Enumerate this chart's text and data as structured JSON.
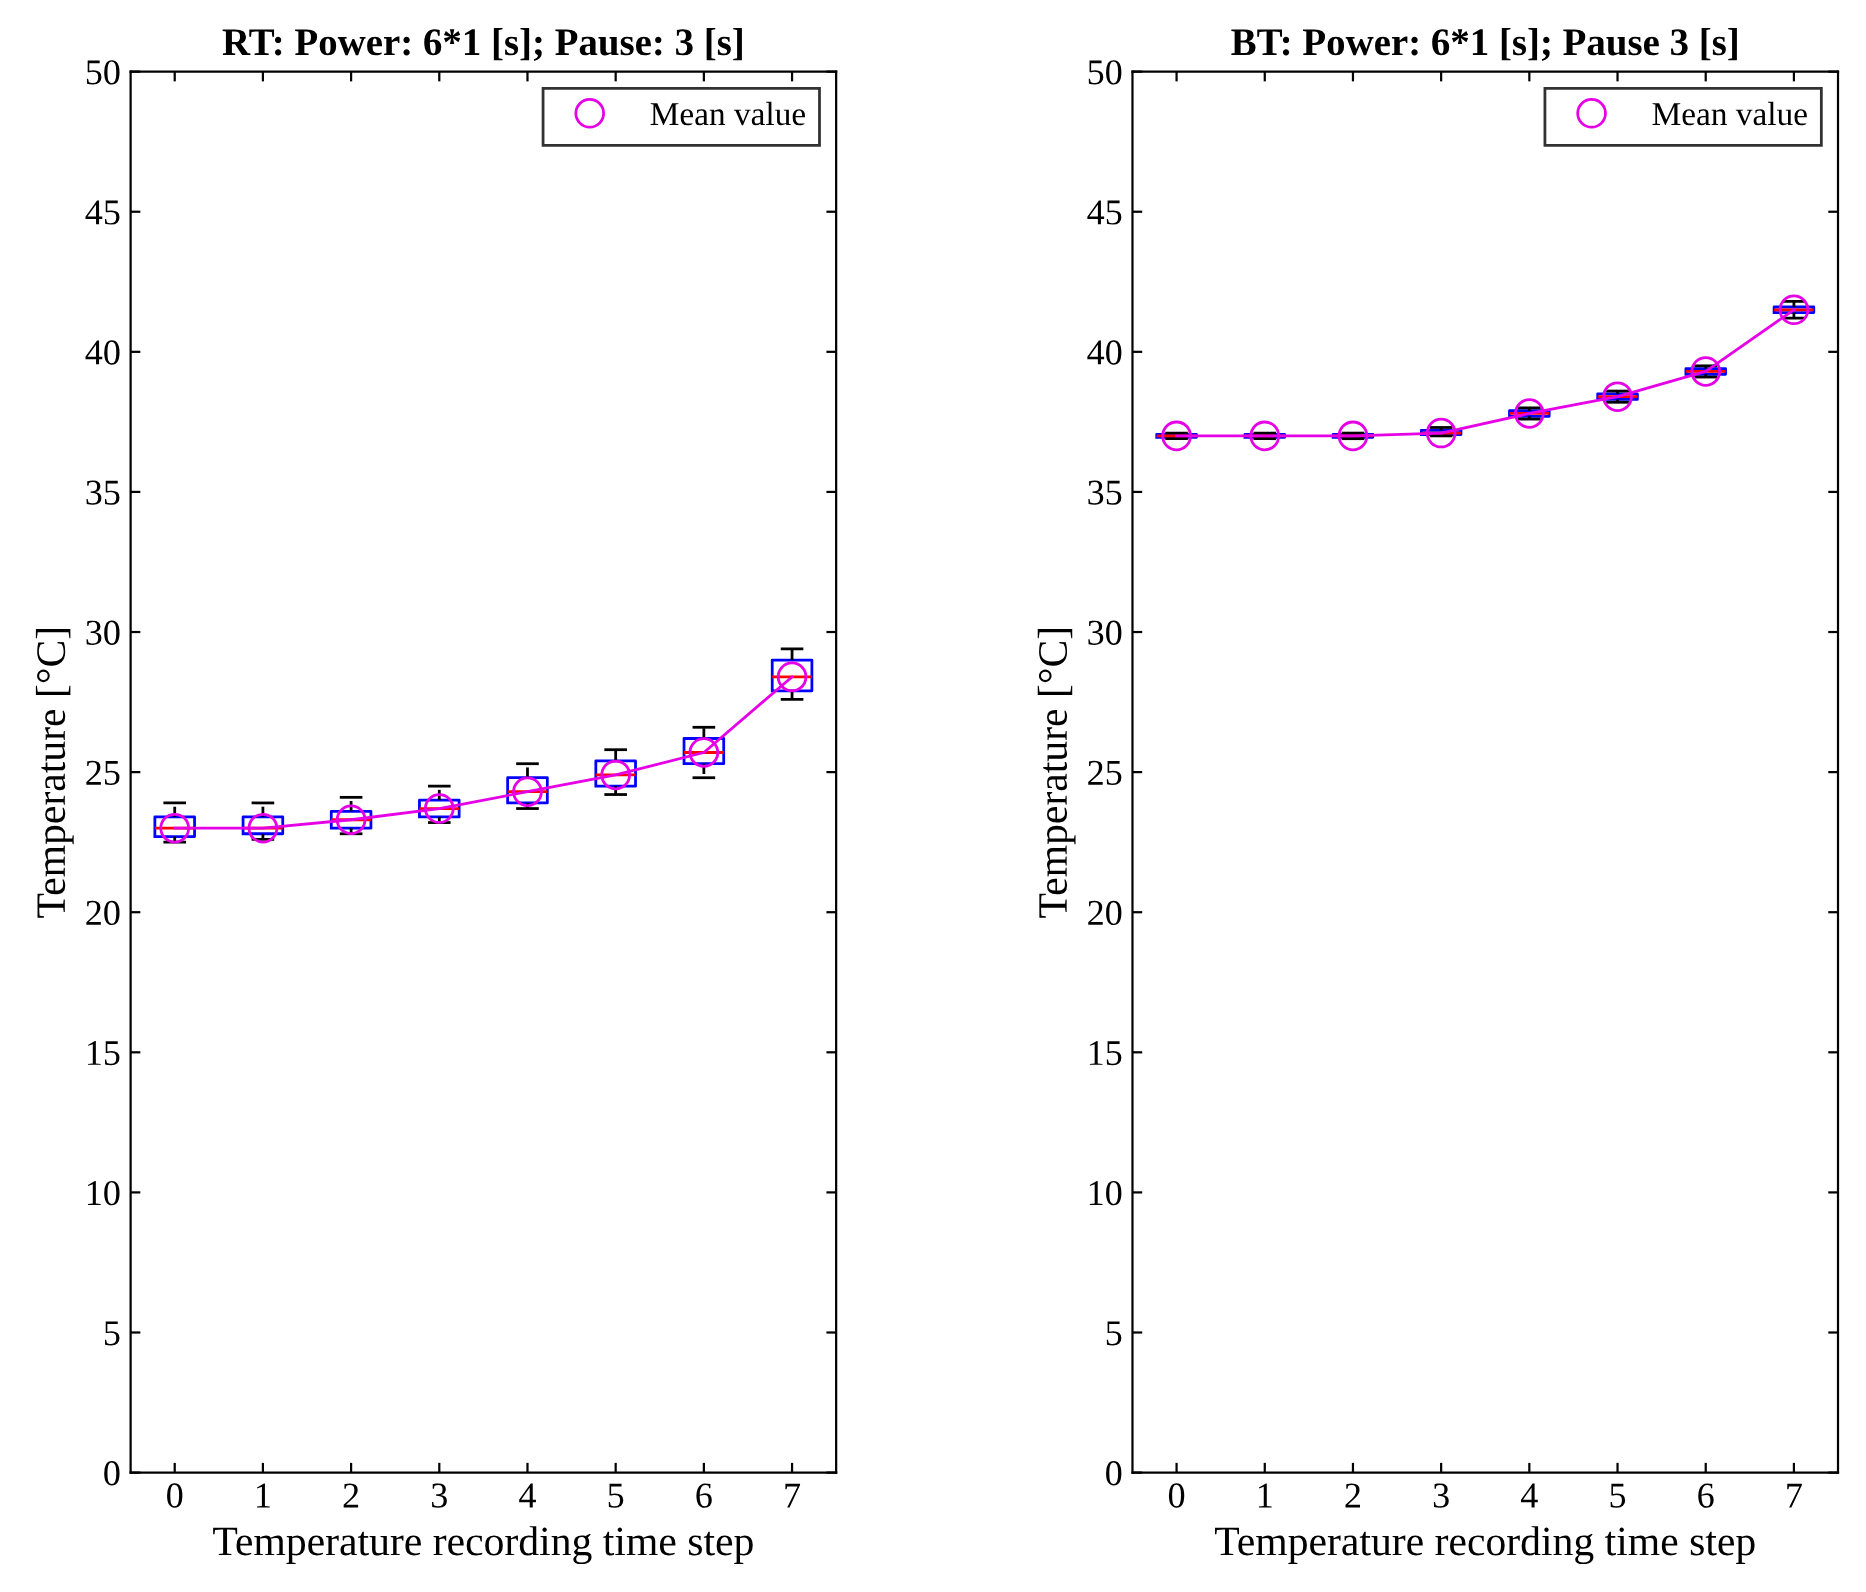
{
  "chart_data": [
    {
      "type": "box",
      "title": "RT: Power: 6*1 [s]; Pause: 3 [s]",
      "xlabel": "Temperature recording time step",
      "ylabel": "Temperature [°C]",
      "categories": [
        "0",
        "1",
        "2",
        "3",
        "4",
        "5",
        "6",
        "7"
      ],
      "ylim": [
        0,
        50
      ],
      "yticks": [
        0,
        5,
        10,
        15,
        20,
        25,
        30,
        35,
        40,
        45,
        50
      ],
      "legend": "top right",
      "grid": false,
      "color": "#0000ff",
      "boxes": [
        {
          "low": 22.5,
          "q1": 22.7,
          "median": 23.0,
          "q3": 23.4,
          "high": 23.9
        },
        {
          "low": 22.6,
          "q1": 22.8,
          "median": 23.0,
          "q3": 23.4,
          "high": 23.9
        },
        {
          "low": 22.8,
          "q1": 23.0,
          "median": 23.3,
          "q3": 23.6,
          "high": 24.1
        },
        {
          "low": 23.2,
          "q1": 23.4,
          "median": 23.7,
          "q3": 24.0,
          "high": 24.5
        },
        {
          "low": 23.7,
          "q1": 23.9,
          "median": 24.3,
          "q3": 24.8,
          "high": 25.3
        },
        {
          "low": 24.2,
          "q1": 24.5,
          "median": 24.9,
          "q3": 25.4,
          "high": 25.8
        },
        {
          "low": 24.8,
          "q1": 25.3,
          "median": 25.7,
          "q3": 26.2,
          "high": 26.6
        },
        {
          "low": 27.6,
          "q1": 27.9,
          "median": 28.4,
          "q3": 29.0,
          "high": 29.4
        }
      ],
      "series": [
        {
          "name": "Mean value",
          "type": "line",
          "color": "#e600e6",
          "marker": "circle",
          "values": [
            23.0,
            23.0,
            23.3,
            23.7,
            24.3,
            24.9,
            25.7,
            28.4
          ]
        }
      ]
    },
    {
      "type": "box",
      "title": "BT: Power: 6*1 [s]; Pause 3 [s]",
      "xlabel": "Temperature recording time step",
      "ylabel": "Temperature [°C]",
      "categories": [
        "0",
        "1",
        "2",
        "3",
        "4",
        "5",
        "6",
        "7"
      ],
      "ylim": [
        0,
        50
      ],
      "yticks": [
        0,
        5,
        10,
        15,
        20,
        25,
        30,
        35,
        40,
        45,
        50
      ],
      "legend": "top right",
      "grid": false,
      "color": "#0000ff",
      "boxes": [
        {
          "low": 36.9,
          "q1": 36.95,
          "median": 37.0,
          "q3": 37.05,
          "high": 37.1
        },
        {
          "low": 36.9,
          "q1": 36.95,
          "median": 37.0,
          "q3": 37.05,
          "high": 37.1
        },
        {
          "low": 36.9,
          "q1": 36.95,
          "median": 37.0,
          "q3": 37.05,
          "high": 37.1
        },
        {
          "low": 37.0,
          "q1": 37.05,
          "median": 37.1,
          "q3": 37.2,
          "high": 37.3
        },
        {
          "low": 37.6,
          "q1": 37.7,
          "median": 37.8,
          "q3": 37.9,
          "high": 38.0
        },
        {
          "low": 38.2,
          "q1": 38.3,
          "median": 38.4,
          "q3": 38.5,
          "high": 38.6
        },
        {
          "low": 39.1,
          "q1": 39.2,
          "median": 39.3,
          "q3": 39.4,
          "high": 39.5
        },
        {
          "low": 41.2,
          "q1": 41.4,
          "median": 41.5,
          "q3": 41.6,
          "high": 41.8
        }
      ],
      "series": [
        {
          "name": "Mean value",
          "type": "line",
          "color": "#e600e6",
          "marker": "circle",
          "values": [
            37.0,
            37.0,
            37.0,
            37.1,
            37.8,
            38.4,
            39.3,
            41.5
          ]
        }
      ]
    }
  ]
}
